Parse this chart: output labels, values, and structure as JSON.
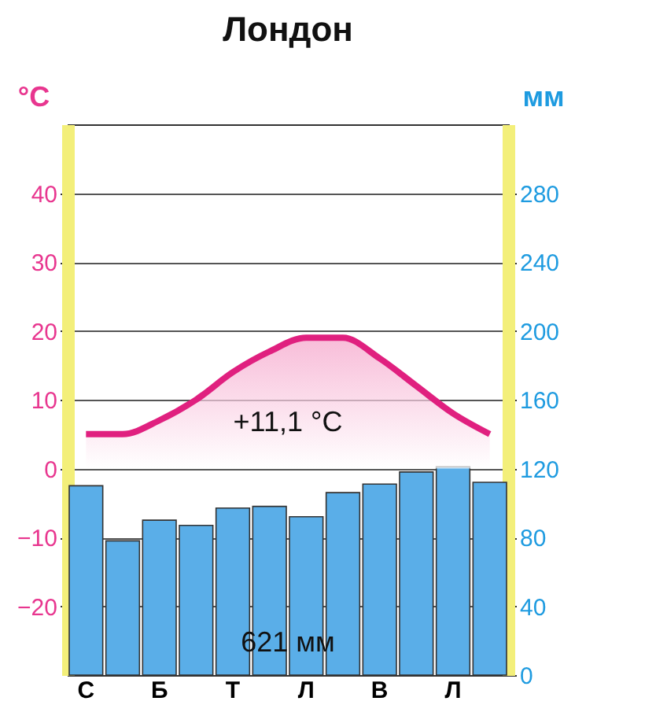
{
  "chart_data": {
    "type": "bar",
    "title": "Лондон",
    "ylabel": "°C",
    "y2label": "мм",
    "categories": [
      "С",
      null,
      "Б",
      null,
      "Т",
      null,
      "Л",
      null,
      "В",
      null,
      "Л",
      null
    ],
    "series": [
      {
        "axis": "y2",
        "color": "#5aaee8",
        "values": [
          110,
          78,
          90,
          87,
          97,
          98,
          92,
          106,
          111,
          118,
          121,
          112
        ]
      },
      {
        "type": "area",
        "axis": "y",
        "color": "#e0207f",
        "values": [
          5,
          5,
          7,
          10,
          14,
          17,
          19,
          19,
          16,
          12,
          8,
          5
        ]
      }
    ],
    "ylim": [
      -30,
      50
    ],
    "yticks": [
      -20,
      -10,
      0,
      10,
      20,
      30,
      40
    ],
    "y2lim": [
      0,
      320
    ],
    "y2ticks": [
      0,
      40,
      80,
      120,
      160,
      200,
      240,
      280
    ],
    "grid": "y",
    "annotations": [
      "+11,1 °C",
      "621 мм"
    ]
  }
}
